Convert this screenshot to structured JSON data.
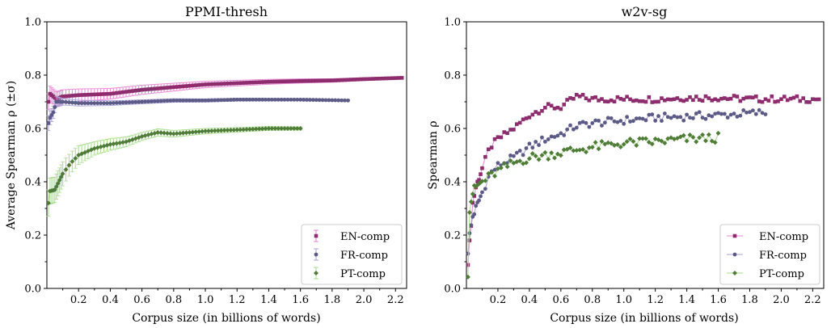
{
  "chart_data": [
    {
      "type": "line",
      "title": "PPMI-thresh",
      "xlabel": "Corpus size (in billions of words)",
      "ylabel": "Average Spearman ρ (±σ)",
      "xlim": [
        0,
        2.27
      ],
      "ylim": [
        0.0,
        1.0
      ],
      "xticks": [
        0.2,
        0.4,
        0.6,
        0.8,
        1.0,
        1.2,
        1.4,
        1.6,
        1.8,
        2.0,
        2.2
      ],
      "yticks": [
        0.0,
        0.2,
        0.4,
        0.6,
        0.8,
        1.0
      ],
      "tick_labels_x": [
        "0.2",
        "0.4",
        "0.6",
        "0.8",
        "1.0",
        "1.2",
        "1.4",
        "1.6",
        "1.8",
        "2.0",
        "2.2"
      ],
      "tick_labels_y": [
        "0.0",
        "0.2",
        "0.4",
        "0.6",
        "0.8",
        "1.0"
      ],
      "grid": false,
      "legend_position": "bottom-right",
      "error_bars": true,
      "series": [
        {
          "name": "EN-comp",
          "marker": "square",
          "color": "#8e2d6e",
          "errcolor": "#e884d6",
          "x_max": 2.25,
          "key": [
            [
              0.01,
              0.7
            ],
            [
              0.02,
              0.73
            ],
            [
              0.04,
              0.72
            ],
            [
              0.06,
              0.71
            ],
            [
              0.1,
              0.72
            ],
            [
              0.2,
              0.725
            ],
            [
              0.4,
              0.73
            ],
            [
              0.6,
              0.745
            ],
            [
              0.8,
              0.755
            ],
            [
              1.0,
              0.765
            ],
            [
              1.2,
              0.77
            ],
            [
              1.4,
              0.775
            ],
            [
              1.6,
              0.778
            ],
            [
              1.8,
              0.78
            ],
            [
              2.0,
              0.785
            ],
            [
              2.25,
              0.79
            ]
          ],
          "err": [
            [
              0.0,
              0.03
            ],
            [
              0.1,
              0.025
            ],
            [
              0.4,
              0.02
            ],
            [
              1.0,
              0.012
            ],
            [
              1.6,
              0.008
            ],
            [
              2.25,
              0.004
            ]
          ]
        },
        {
          "name": "FR-comp",
          "marker": "circle",
          "color": "#5c5a86",
          "errcolor": "#a99fd6",
          "x_max": 1.9,
          "key": [
            [
              0.01,
              0.62
            ],
            [
              0.02,
              0.64
            ],
            [
              0.04,
              0.66
            ],
            [
              0.06,
              0.7
            ],
            [
              0.1,
              0.7
            ],
            [
              0.2,
              0.695
            ],
            [
              0.4,
              0.695
            ],
            [
              0.6,
              0.7
            ],
            [
              0.8,
              0.705
            ],
            [
              1.0,
              0.705
            ],
            [
              1.2,
              0.708
            ],
            [
              1.4,
              0.708
            ],
            [
              1.6,
              0.708
            ],
            [
              1.9,
              0.705
            ]
          ],
          "err": [
            [
              0.0,
              0.03
            ],
            [
              0.1,
              0.012
            ],
            [
              0.5,
              0.008
            ],
            [
              1.0,
              0.006
            ],
            [
              1.9,
              0.003
            ]
          ]
        },
        {
          "name": "PT-comp",
          "marker": "diamond",
          "color": "#4f7d37",
          "errcolor": "#a6dd8b",
          "x_max": 1.6,
          "key": [
            [
              0.01,
              0.32
            ],
            [
              0.02,
              0.365
            ],
            [
              0.05,
              0.37
            ],
            [
              0.1,
              0.43
            ],
            [
              0.15,
              0.47
            ],
            [
              0.2,
              0.5
            ],
            [
              0.3,
              0.525
            ],
            [
              0.4,
              0.54
            ],
            [
              0.5,
              0.55
            ],
            [
              0.6,
              0.57
            ],
            [
              0.7,
              0.585
            ],
            [
              0.8,
              0.58
            ],
            [
              1.0,
              0.59
            ],
            [
              1.2,
              0.595
            ],
            [
              1.4,
              0.6
            ],
            [
              1.6,
              0.6
            ]
          ],
          "err": [
            [
              0.0,
              0.05
            ],
            [
              0.1,
              0.045
            ],
            [
              0.3,
              0.025
            ],
            [
              0.6,
              0.015
            ],
            [
              1.0,
              0.01
            ],
            [
              1.6,
              0.006
            ]
          ]
        }
      ]
    },
    {
      "type": "line",
      "title": "w2v-sg",
      "xlabel": "Corpus size (in billions of words)",
      "ylabel": "Spearman ρ",
      "xlim": [
        0,
        2.27
      ],
      "ylim": [
        0.0,
        1.0
      ],
      "xticks": [
        0.2,
        0.4,
        0.6,
        0.8,
        1.0,
        1.2,
        1.4,
        1.6,
        1.8,
        2.0,
        2.2
      ],
      "yticks": [
        0.0,
        0.2,
        0.4,
        0.6,
        0.8,
        1.0
      ],
      "tick_labels_x": [
        "0.2",
        "0.4",
        "0.6",
        "0.8",
        "1.0",
        "1.2",
        "1.4",
        "1.6",
        "1.8",
        "2.0",
        "2.2"
      ],
      "tick_labels_y": [
        "0.0",
        "0.2",
        "0.4",
        "0.6",
        "0.8",
        "1.0"
      ],
      "grid": false,
      "legend_position": "bottom-right",
      "error_bars": false,
      "series": [
        {
          "name": "EN-comp",
          "marker": "square",
          "color": "#8e2d6e",
          "errcolor": "#e884d6",
          "x_max": 2.25,
          "key": [
            [
              0.01,
              0.1
            ],
            [
              0.02,
              0.17
            ],
            [
              0.04,
              0.32
            ],
            [
              0.06,
              0.38
            ],
            [
              0.1,
              0.45
            ],
            [
              0.15,
              0.53
            ],
            [
              0.2,
              0.56
            ],
            [
              0.3,
              0.6
            ],
            [
              0.4,
              0.65
            ],
            [
              0.5,
              0.68
            ],
            [
              0.6,
              0.68
            ],
            [
              0.7,
              0.72
            ],
            [
              0.8,
              0.71
            ],
            [
              1.0,
              0.71
            ],
            [
              1.2,
              0.71
            ],
            [
              1.4,
              0.715
            ],
            [
              1.6,
              0.715
            ],
            [
              1.8,
              0.71
            ],
            [
              2.0,
              0.71
            ],
            [
              2.25,
              0.71
            ]
          ],
          "jitter": 0.012
        },
        {
          "name": "FR-comp",
          "marker": "circle",
          "color": "#5c5a86",
          "errcolor": "#a99fd6",
          "x_max": 1.9,
          "key": [
            [
              0.01,
              0.14
            ],
            [
              0.02,
              0.2
            ],
            [
              0.04,
              0.27
            ],
            [
              0.06,
              0.3
            ],
            [
              0.1,
              0.36
            ],
            [
              0.15,
              0.43
            ],
            [
              0.2,
              0.46
            ],
            [
              0.3,
              0.49
            ],
            [
              0.4,
              0.53
            ],
            [
              0.5,
              0.56
            ],
            [
              0.6,
              0.58
            ],
            [
              0.7,
              0.61
            ],
            [
              0.8,
              0.62
            ],
            [
              1.0,
              0.63
            ],
            [
              1.2,
              0.64
            ],
            [
              1.4,
              0.645
            ],
            [
              1.6,
              0.65
            ],
            [
              1.9,
              0.66
            ]
          ],
          "jitter": 0.015
        },
        {
          "name": "PT-comp",
          "marker": "diamond",
          "color": "#4f7d37",
          "errcolor": "#a6dd8b",
          "x_max": 1.6,
          "key": [
            [
              0.01,
              0.06
            ],
            [
              0.02,
              0.3
            ],
            [
              0.04,
              0.36
            ],
            [
              0.06,
              0.38
            ],
            [
              0.1,
              0.4
            ],
            [
              0.15,
              0.42
            ],
            [
              0.2,
              0.44
            ],
            [
              0.3,
              0.47
            ],
            [
              0.4,
              0.49
            ],
            [
              0.5,
              0.5
            ],
            [
              0.6,
              0.51
            ],
            [
              0.8,
              0.53
            ],
            [
              1.0,
              0.545
            ],
            [
              1.2,
              0.55
            ],
            [
              1.4,
              0.56
            ],
            [
              1.6,
              0.565
            ]
          ],
          "jitter": 0.018
        }
      ]
    }
  ]
}
